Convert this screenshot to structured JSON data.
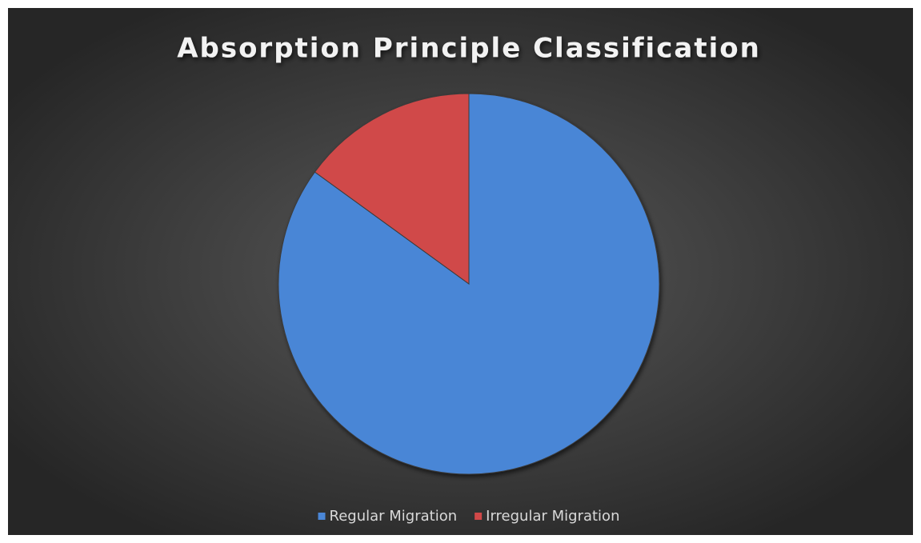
{
  "chart_data": {
    "type": "pie",
    "title": "Absorption Principle Classification",
    "categories": [
      "Regular Migration",
      "Irregular Migration"
    ],
    "values": [
      85,
      15
    ],
    "colors": [
      "#4a86d6",
      "#d04848"
    ],
    "legend": "bottom"
  }
}
